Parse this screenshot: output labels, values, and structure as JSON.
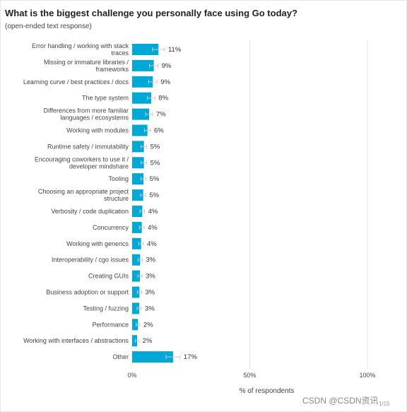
{
  "chart_data": {
    "type": "bar",
    "orientation": "horizontal",
    "title": "What is the biggest challenge you personally face using Go today?",
    "subtitle": "(open-ended text response)",
    "xlabel": "% of respondents",
    "xlim": [
      0,
      100
    ],
    "xticks": [
      "0%",
      "50%",
      "100%"
    ],
    "grid": true,
    "error_bars": true,
    "bar_color": "#00a8d6",
    "categories": [
      [
        "Error handling / working with stack",
        "traces"
      ],
      [
        "Missing or immature libraries /",
        "frameworks"
      ],
      [
        "Learning curve / best practices / docs"
      ],
      [
        "The type system"
      ],
      [
        "Differences from more familiar",
        "languages / ecosystems"
      ],
      [
        "Working with modules"
      ],
      [
        "Runtime safety / immutability"
      ],
      [
        "Encouraging coworkers to use it /",
        "developer mindshare"
      ],
      [
        "Tooling"
      ],
      [
        "Choosing an appropriate project",
        "structure"
      ],
      [
        "Verbosity / code duplication"
      ],
      [
        "Concurrency"
      ],
      [
        "Working with generics"
      ],
      [
        "Interoperability / cgo issues"
      ],
      [
        "Creating GUIs"
      ],
      [
        "Business adoption or support"
      ],
      [
        "Testing / fuzzing"
      ],
      [
        "Performance"
      ],
      [
        "Working with interfaces / abstractions"
      ],
      [
        "Other"
      ]
    ],
    "values": [
      11.2,
      9.2,
      8.8,
      8.1,
      7.2,
      6.5,
      5.0,
      5.0,
      4.8,
      4.7,
      4.3,
      4.1,
      3.8,
      3.4,
      3.3,
      3.1,
      3.0,
      2.5,
      2.1,
      17.4
    ],
    "labels": [
      "11%",
      "9%",
      "9%",
      "8%",
      "7%",
      "6%",
      "5%",
      "5%",
      "5%",
      "5%",
      "4%",
      "4%",
      "4%",
      "3%",
      "3%",
      "3%",
      "3%",
      "2%",
      "2%",
      "17%"
    ],
    "error_margin": [
      2.6,
      1.8,
      1.8,
      1.6,
      1.5,
      1.3,
      1.2,
      1.2,
      1.1,
      1.1,
      1.0,
      1.0,
      1.0,
      0.9,
      0.9,
      0.9,
      0.9,
      0.8,
      0.8,
      3.0
    ]
  },
  "watermark": "CSDN @CSDN资讯",
  "page_number": "1/15"
}
